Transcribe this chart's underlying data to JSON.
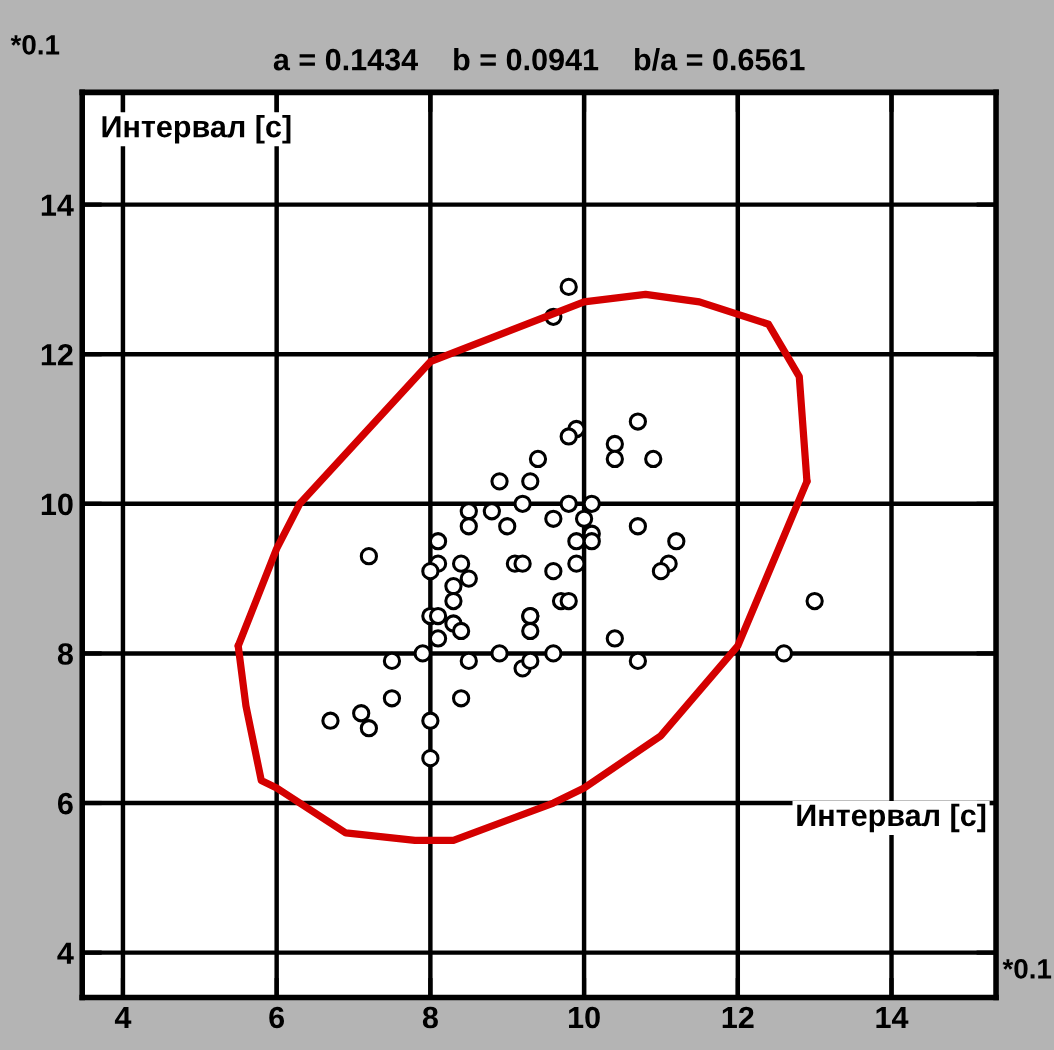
{
  "chart_data": {
    "type": "scatter",
    "title": "a = 0.1434    b = 0.0941    b/a = 0.6561",
    "xlabel": "Интервал [c]",
    "ylabel": "Интервал [c]",
    "annotations": [
      "*0.1",
      "*0.1"
    ],
    "xlim": [
      3.47,
      15.36
    ],
    "ylim": [
      3.4,
      15.5
    ],
    "xticks": [
      4,
      6,
      8,
      10,
      12,
      14
    ],
    "yticks": [
      4,
      6,
      8,
      10,
      12,
      14
    ],
    "grid": true,
    "legend": false,
    "series": [
      {
        "marker": "circle",
        "color": "#000000",
        "x": [
          9.8,
          9.6,
          9.9,
          9.8,
          10.7,
          10.4,
          10.4,
          10.9,
          9.4,
          8.9,
          9.3,
          8.5,
          8.8,
          9.2,
          9.8,
          10.1,
          8.5,
          9.0,
          9.6,
          10.0,
          10.7,
          8.1,
          9.9,
          10.1,
          10.1,
          11.2,
          11.1,
          11.0,
          7.2,
          8.1,
          8.0,
          8.4,
          8.5,
          9.1,
          9.2,
          9.6,
          9.9,
          8.3,
          8.3,
          9.7,
          9.8,
          13.0,
          8.0,
          8.1,
          8.3,
          8.4,
          8.1,
          9.3,
          9.3,
          9.3,
          10.4,
          7.9,
          8.9,
          7.5,
          8.5,
          9.2,
          9.3,
          9.6,
          10.7,
          12.6,
          7.5,
          8.4,
          6.7,
          7.1,
          7.2,
          8.0,
          8.0
        ],
        "values": [
          12.9,
          12.5,
          11.0,
          10.9,
          11.1,
          10.8,
          10.6,
          10.6,
          10.6,
          10.3,
          10.3,
          9.9,
          9.9,
          10.0,
          10.0,
          10.0,
          9.7,
          9.7,
          9.8,
          9.8,
          9.7,
          9.5,
          9.5,
          9.6,
          9.5,
          9.5,
          9.2,
          9.1,
          9.3,
          9.2,
          9.1,
          9.2,
          9.0,
          9.2,
          9.2,
          9.1,
          9.2,
          8.9,
          8.7,
          8.7,
          8.7,
          8.7,
          8.5,
          8.5,
          8.4,
          8.3,
          8.2,
          8.5,
          8.5,
          8.3,
          8.2,
          8.0,
          8.0,
          7.9,
          7.9,
          7.8,
          7.9,
          8.0,
          7.9,
          8.0,
          7.4,
          7.4,
          7.1,
          7.2,
          7.0,
          7.1,
          6.6
        ]
      },
      {
        "type": "line",
        "marker": "none",
        "line_style": "solid",
        "color": "#d40000",
        "x": [
          5.5,
          6.0,
          6.3,
          8.0,
          10.0,
          10.8,
          11.5,
          12.4,
          12.8,
          12.9
        ],
        "values": [
          8.1,
          9.4,
          10.0,
          11.9,
          12.7,
          12.8,
          12.7,
          12.4,
          11.7,
          10.3
        ]
      },
      {
        "type": "line",
        "marker": "none",
        "line_style": "solid",
        "color": "#d40000",
        "x": [
          5.5,
          5.6,
          5.8,
          6.0,
          6.9,
          7.8,
          8.3,
          9.6,
          10.0,
          11.0,
          12.0,
          12.9
        ],
        "values": [
          8.1,
          7.3,
          6.3,
          6.2,
          5.6,
          5.5,
          5.5,
          6.0,
          6.2,
          6.9,
          8.1,
          10.3
        ]
      }
    ]
  }
}
